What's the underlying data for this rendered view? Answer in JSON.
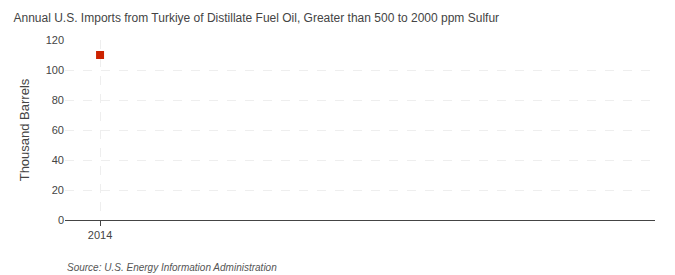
{
  "chart_data": {
    "type": "scatter",
    "title": "Annual U.S. Imports from Turkiye of Distillate Fuel Oil, Greater than 500 to 2000 ppm Sulfur",
    "ylabel": "Thousand Barrels",
    "source": "Source: U.S. Energy Information Administration",
    "x": [
      2014
    ],
    "values": [
      110
    ],
    "color": "#cc2200",
    "marker": "square",
    "xlim": [
      2013.4,
      2023.5
    ],
    "xticks": [
      2014
    ],
    "ylim": [
      0,
      120
    ],
    "yticks": [
      0,
      20,
      40,
      60,
      80,
      100,
      120
    ],
    "grid": true
  }
}
